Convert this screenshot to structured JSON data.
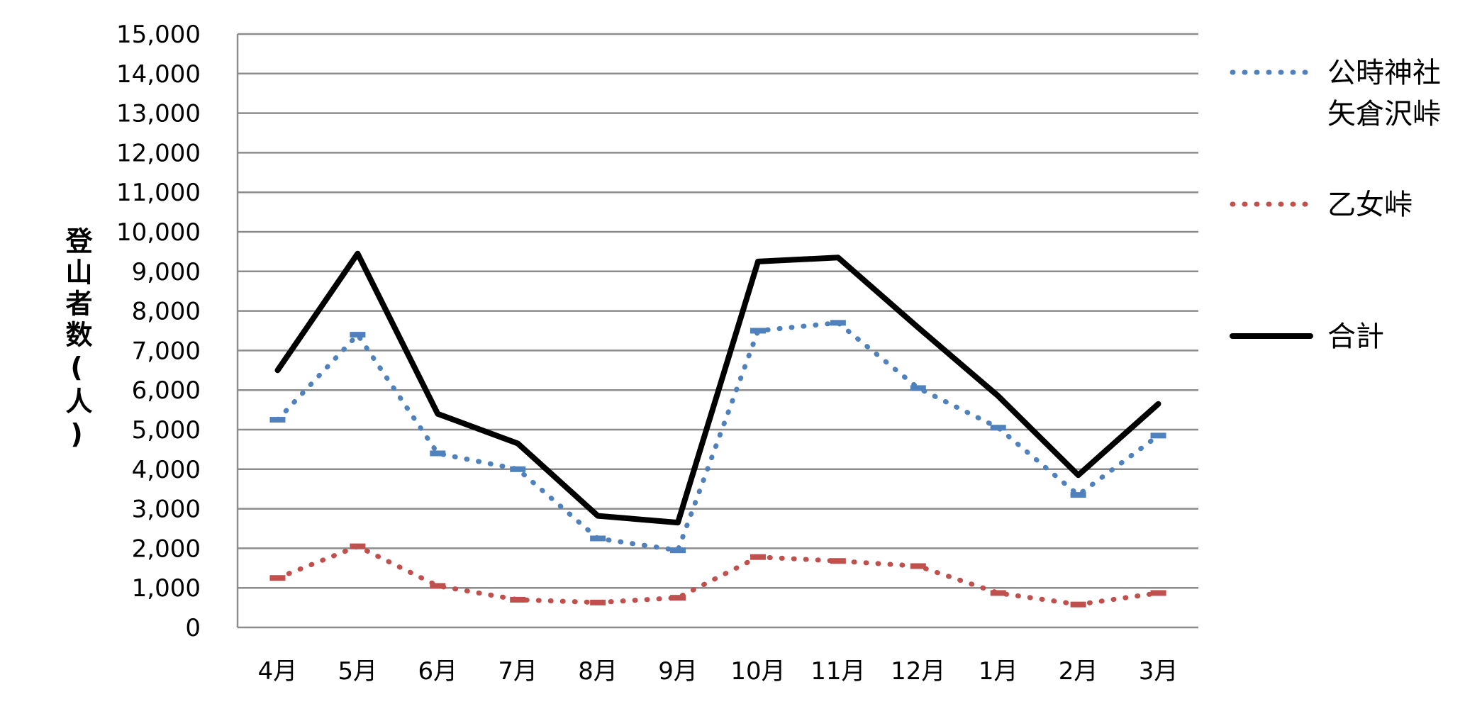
{
  "chart_data": {
    "type": "line",
    "title": "",
    "xlabel": "",
    "ylabel": "登山者数(人)",
    "ylim": [
      0,
      15000
    ],
    "yticks": [
      "0",
      "1,000",
      "2,000",
      "3,000",
      "4,000",
      "5,000",
      "6,000",
      "7,000",
      "8,000",
      "9,000",
      "10,000",
      "11,000",
      "12,000",
      "13,000",
      "14,000",
      "15,000"
    ],
    "categories": [
      "4月",
      "5月",
      "6月",
      "7月",
      "8月",
      "9月",
      "10月",
      "11月",
      "12月",
      "1月",
      "2月",
      "3月"
    ],
    "grid": true,
    "legend_position": "right",
    "series": [
      {
        "name_lines": [
          "公時神社",
          "矢倉沢峠"
        ],
        "color": "#4F81BD",
        "style": "dotted",
        "values": [
          5250,
          7400,
          4400,
          4000,
          2250,
          1950,
          7500,
          7700,
          6050,
          5050,
          3350,
          4850
        ]
      },
      {
        "name_lines": [
          "乙女峠"
        ],
        "color": "#C0504D",
        "style": "dotted",
        "values": [
          1250,
          2050,
          1050,
          700,
          630,
          750,
          1780,
          1680,
          1550,
          870,
          580,
          870
        ]
      },
      {
        "name_lines": [
          "合計"
        ],
        "color": "#000000",
        "style": "solid",
        "values": [
          6500,
          9450,
          5400,
          4650,
          2820,
          2650,
          9250,
          9350,
          7580,
          5850,
          3850,
          5650
        ]
      }
    ]
  }
}
